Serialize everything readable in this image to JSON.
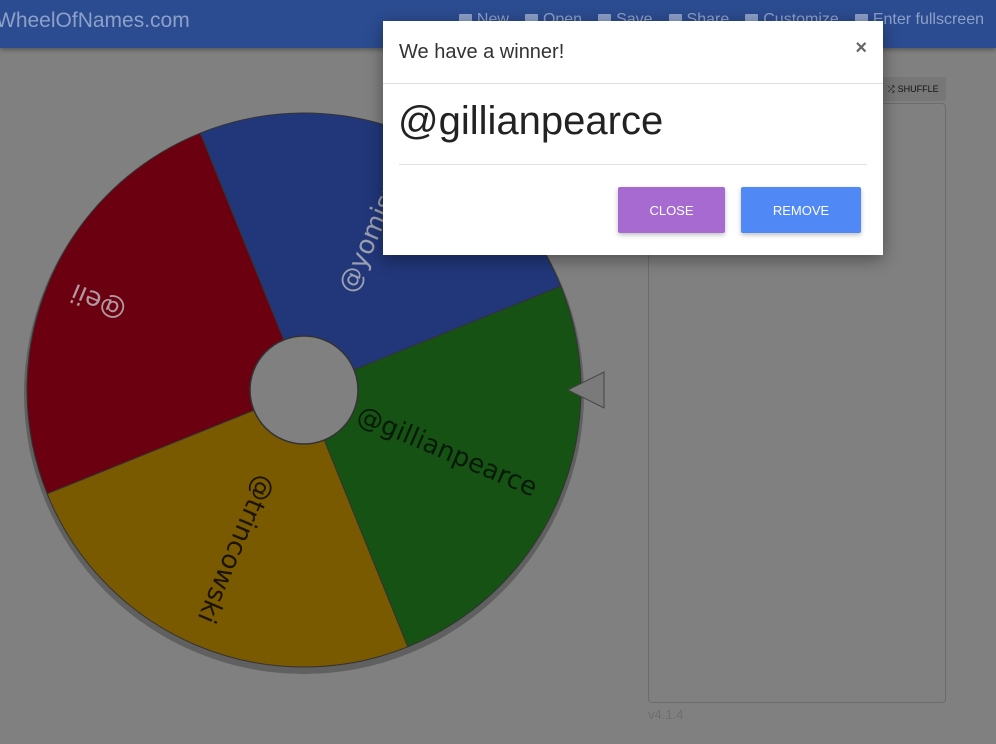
{
  "header": {
    "brand": "WheelOfNames.com",
    "nav": [
      {
        "label": "New",
        "icon": "file-icon"
      },
      {
        "label": "Open",
        "icon": "folder-icon"
      },
      {
        "label": "Save",
        "icon": "save-icon"
      },
      {
        "label": "Share",
        "icon": "share-icon"
      },
      {
        "label": "Customize",
        "icon": "image-icon"
      },
      {
        "label": "Enter fullscreen",
        "icon": "fullscreen-icon"
      }
    ]
  },
  "wheel": {
    "segments": [
      {
        "name": "@yomismo",
        "color": "#22377a",
        "text_color": "#9aa0b0"
      },
      {
        "name": "@gillianpearce",
        "color": "#165214",
        "text_color": "#0a1a0a"
      },
      {
        "name": "@trincowski",
        "color": "#7a5a00",
        "text_color": "#1a1400"
      },
      {
        "name": "@eii",
        "color": "#6a0010",
        "text_color": "#b09aa0"
      }
    ]
  },
  "sidebar": {
    "shuffle_label": "SHUFFLE",
    "version": "v4.1.4"
  },
  "modal": {
    "title": "We have a winner!",
    "close_icon": "×",
    "winner": "@gillianpearce",
    "close_label": "CLOSE",
    "remove_label": "REMOVE",
    "close_color": "#a66ad0",
    "remove_color": "#5088f6"
  }
}
